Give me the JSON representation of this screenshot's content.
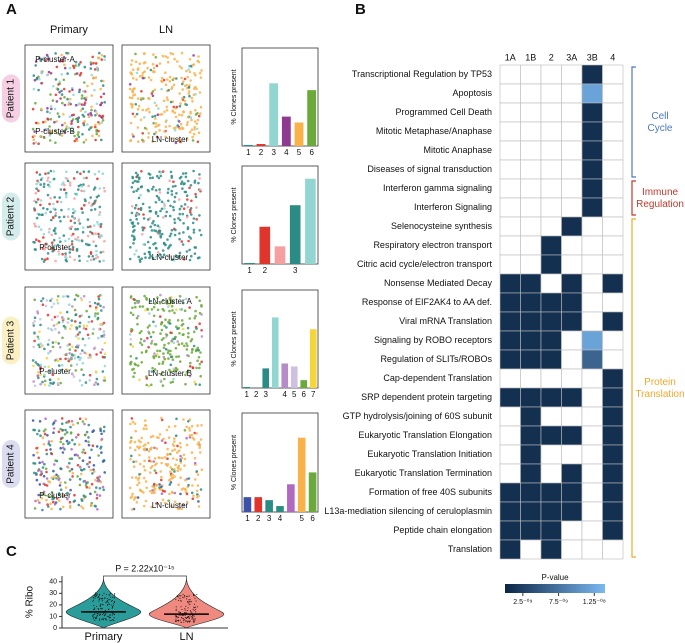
{
  "panel_labels": [
    "A",
    "B",
    "C"
  ],
  "panel_a": {
    "columns": [
      "Primary",
      "LN"
    ],
    "bar_ylabel": "% Clones present",
    "bar_ylim": [
      0,
      100
    ],
    "patients": [
      {
        "label": "Patient 1",
        "color": "#f6cfe4",
        "primary_labels": [
          "P-cluster-A",
          "P-cluster-B"
        ],
        "ln_labels": [
          "LN-cluster"
        ],
        "categories": [
          "1",
          "2",
          "3",
          "4",
          "5",
          "6"
        ],
        "values": [
          1,
          2,
          64,
          30,
          24,
          57
        ],
        "colors": [
          "#2b8c86",
          "#e0342c",
          "#92d6d2",
          "#8e3a91",
          "#f9b24a",
          "#6aa93a"
        ]
      },
      {
        "label": "Patient 2",
        "color": "#d4ecec",
        "primary_labels": [
          "P-cluster"
        ],
        "ln_labels": [
          "LN-cluster"
        ],
        "categories": [
          "1",
          "2",
          null,
          "3",
          null
        ],
        "values": [
          1,
          38,
          18,
          60,
          87
        ],
        "colors": [
          "#2b8c86",
          "#e0342c",
          "#f4a0a0",
          "#2b8c86",
          "#92d6d2"
        ]
      },
      {
        "label": "Patient 3",
        "color": "#fbf0c4",
        "primary_labels": [
          "P-cluster"
        ],
        "ln_labels": [
          "LN-cluster A",
          "LN-cluster B"
        ],
        "categories": [
          "1",
          "2",
          "3",
          null,
          "4",
          "5",
          "6",
          "7"
        ],
        "values": [
          1,
          0,
          20,
          72,
          25,
          22,
          8,
          60
        ],
        "colors": [
          "#2b8c86",
          "#e0342c",
          "#2b8c86",
          "#92d6d2",
          "#b68cc8",
          "#cfc0e0",
          "#6aa93a",
          "#f5d63a"
        ]
      },
      {
        "label": "Patient 4",
        "color": "#dcdcf0",
        "primary_labels": [
          "P-cluster"
        ],
        "ln_labels": [
          "LN-cluster"
        ],
        "categories": [
          "1",
          "2",
          "3",
          "4",
          null,
          "5",
          "6"
        ],
        "values": [
          15,
          15,
          12,
          6,
          28,
          75,
          40
        ],
        "colors": [
          "#3b52a8",
          "#e0342c",
          "#2b8c86",
          "#2b8c86",
          "#b068c0",
          "#f9b24a",
          "#6aa93a"
        ]
      }
    ]
  },
  "panel_b": {
    "columns": [
      "1A",
      "1B",
      "2",
      "3A",
      "3B",
      "4"
    ],
    "rows": [
      "Transcriptional Regulation by TP53",
      "Apoptosis",
      "Programmed Cell Death",
      "Mitotic Metaphase/Anaphase",
      "Mitotic Anaphase",
      "Diseases of signal transduction",
      "Interferon gamma signaling",
      "Interferon Signaling",
      "Selenocysteine synthesis",
      "Respiratory electron transport",
      "Citric acid cycle/electron transport",
      "Nonsense Mediated Decay",
      "Response of EIF2AK4 to AA def.",
      "Viral mRNA Translation",
      "Signaling by ROBO receptors",
      "Regulation of SLITs/ROBOs",
      "Cap-dependent Translation",
      "SRP dependent protein targeting",
      "GTP hydrolysis/joining of 60S subunit",
      "Eukaryotic Translation Elongation",
      "Eukaryotic Translation Initiation",
      "Eukaryotic Translation Termination",
      "Formation of free 40S subunits",
      "L13a-mediation silencing of ceruloplasmin",
      "Peptide chain elongation",
      "Translation"
    ],
    "values": [
      [
        null,
        null,
        null,
        null,
        1e-09,
        null
      ],
      [
        null,
        null,
        null,
        null,
        1.2e-08,
        null
      ],
      [
        null,
        null,
        null,
        null,
        1e-09,
        null
      ],
      [
        null,
        null,
        null,
        null,
        1e-09,
        null
      ],
      [
        null,
        null,
        null,
        null,
        1e-09,
        null
      ],
      [
        null,
        null,
        null,
        null,
        1e-09,
        null
      ],
      [
        null,
        null,
        null,
        null,
        1e-09,
        null
      ],
      [
        null,
        null,
        null,
        null,
        1e-09,
        null
      ],
      [
        null,
        null,
        null,
        1e-09,
        null,
        null
      ],
      [
        null,
        null,
        1e-09,
        null,
        null,
        null
      ],
      [
        null,
        null,
        1e-09,
        null,
        null,
        null
      ],
      [
        1e-09,
        1e-09,
        null,
        1e-09,
        null,
        1e-09
      ],
      [
        1e-09,
        1e-09,
        1e-09,
        1e-09,
        null,
        null
      ],
      [
        1e-09,
        1e-09,
        1e-09,
        1e-09,
        null,
        1e-09
      ],
      [
        1e-09,
        1e-09,
        1e-09,
        null,
        1.2e-08,
        null
      ],
      [
        1e-09,
        1e-09,
        1e-09,
        null,
        6e-09,
        null
      ],
      [
        null,
        null,
        null,
        null,
        null,
        1e-09
      ],
      [
        1e-09,
        1e-09,
        1e-09,
        1e-09,
        null,
        1e-09
      ],
      [
        null,
        1e-09,
        null,
        null,
        null,
        1e-09
      ],
      [
        null,
        1e-09,
        1e-09,
        1e-09,
        null,
        1e-09
      ],
      [
        null,
        1e-09,
        null,
        null,
        null,
        1e-09
      ],
      [
        null,
        1e-09,
        null,
        1e-09,
        null,
        1e-09
      ],
      [
        1e-09,
        1e-09,
        1e-09,
        1e-09,
        null,
        1e-09
      ],
      [
        1e-09,
        1e-09,
        1e-09,
        1e-09,
        null,
        1e-09
      ],
      [
        1e-09,
        1e-09,
        1e-09,
        null,
        null,
        1e-09
      ],
      [
        1e-09,
        null,
        1e-09,
        null,
        null,
        null
      ]
    ],
    "groups": [
      {
        "label": "Cell Cycle",
        "rows": [
          0,
          5
        ],
        "color": "#4a78c0"
      },
      {
        "label": "Immune Regulation",
        "rows": [
          6,
          7
        ],
        "color": "#c0392b"
      },
      {
        "label": "Protein Translation",
        "rows": [
          8,
          25
        ],
        "color": "#f0a830"
      }
    ],
    "colorbar_title": "P-value",
    "colorbar_lim": [
      0,
      1.4e-08
    ],
    "colorbar_ticks": [
      {
        "value": 2.5e-09,
        "label": "2.5⁻⁰⁹"
      },
      {
        "value": 7.5e-09,
        "label": "7.5⁻⁰⁹"
      },
      {
        "value": 1.25e-08,
        "label": "1.25⁻⁰⁸"
      }
    ]
  },
  "panel_c": {
    "type": "violin",
    "ylabel": "% Ribo",
    "categories": [
      "Primary",
      "LN"
    ],
    "medians": [
      14,
      12
    ],
    "colors": [
      "#2a9d9a",
      "#f08a80"
    ],
    "ylim": [
      0,
      45
    ],
    "yticks": [
      0,
      10,
      20,
      30,
      40
    ],
    "annotation": "P = 2.22x10⁻¹⁵"
  }
}
